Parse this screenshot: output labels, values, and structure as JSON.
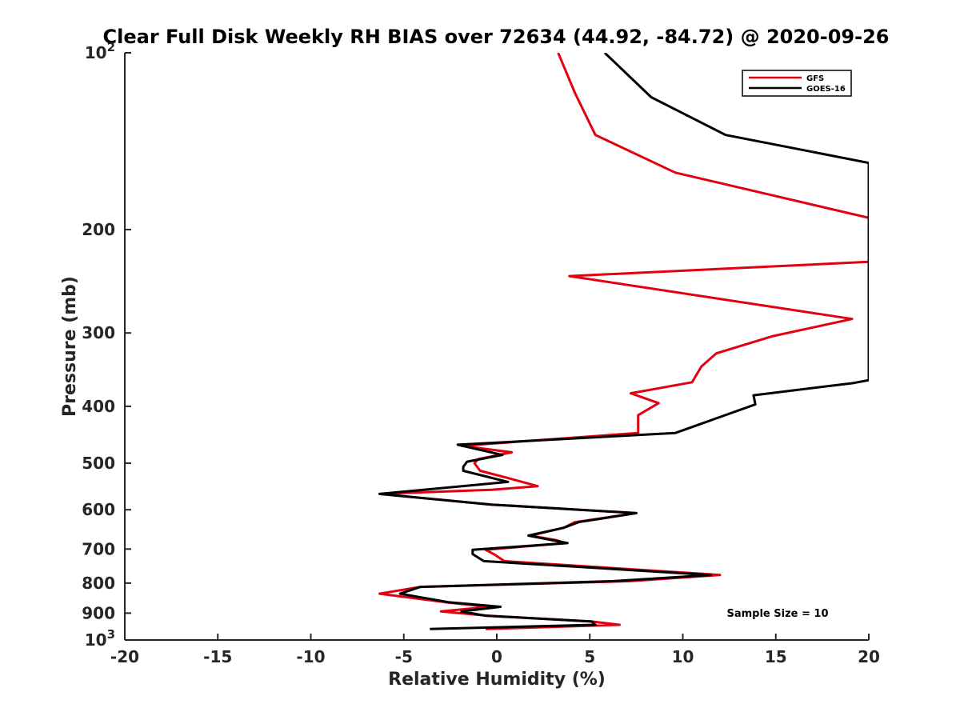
{
  "chart_data": {
    "type": "line",
    "title": "Clear Full Disk Weekly RH BIAS over 72634 (44.92, -84.72) @ 2020-09-26",
    "xlabel": "Relative Humidity (%)",
    "ylabel": "Pressure (mb)",
    "xlim": [
      -20,
      20
    ],
    "ylim": [
      100,
      1000
    ],
    "yscale": "log",
    "yreversed": true,
    "xticks": [
      "-20",
      "-15",
      "-10",
      "-5",
      "0",
      "5",
      "10",
      "15",
      "20"
    ],
    "yticks": [
      {
        "value": 100,
        "base": "10",
        "exp": "2"
      },
      {
        "value": 200,
        "label": "200"
      },
      {
        "value": 300,
        "label": "300"
      },
      {
        "value": 400,
        "label": "400"
      },
      {
        "value": 500,
        "label": "500"
      },
      {
        "value": 600,
        "label": "600"
      },
      {
        "value": 700,
        "label": "700"
      },
      {
        "value": 800,
        "label": "800"
      },
      {
        "value": 900,
        "label": "900"
      },
      {
        "value": 1000,
        "base": "10",
        "exp": "3"
      }
    ],
    "legend": "top-right",
    "annotation": "Sample Size = 10",
    "series": [
      {
        "name": "GFS",
        "color": "#e3000f",
        "points": [
          [
            3.3,
            100
          ],
          [
            4.2,
            117
          ],
          [
            5.3,
            138
          ],
          [
            9.6,
            160
          ],
          [
            20,
            191
          ],
          [
            20,
            227
          ],
          [
            3.9,
            240
          ],
          [
            19.1,
            284
          ],
          [
            14.8,
            304
          ],
          [
            11.8,
            325
          ],
          [
            11.0,
            342
          ],
          [
            10.5,
            364
          ],
          [
            7.2,
            380
          ],
          [
            8.7,
            395
          ],
          [
            7.6,
            414
          ],
          [
            7.6,
            444
          ],
          [
            -1.9,
            467
          ],
          [
            0.8,
            479
          ],
          [
            -1.0,
            492
          ],
          [
            -1.2,
            500
          ],
          [
            -0.9,
            515
          ],
          [
            0.7,
            531
          ],
          [
            2.2,
            547
          ],
          [
            -0.3,
            555
          ],
          [
            -6.3,
            564
          ],
          [
            -0.3,
            588
          ],
          [
            7.5,
            608
          ],
          [
            4.2,
            630
          ],
          [
            3.6,
            644
          ],
          [
            1.8,
            664
          ],
          [
            3.2,
            676
          ],
          [
            3.7,
            684
          ],
          [
            -0.6,
            702
          ],
          [
            -0.1,
            716
          ],
          [
            0.4,
            734
          ],
          [
            12.0,
            775
          ],
          [
            7.1,
            794
          ],
          [
            -4.1,
            812
          ],
          [
            -6.3,
            834
          ],
          [
            -2.8,
            862
          ],
          [
            -0.4,
            878
          ],
          [
            -3.0,
            894
          ],
          [
            -0.5,
            909
          ],
          [
            5.1,
            930
          ],
          [
            6.6,
            942
          ],
          [
            -0.6,
            958
          ]
        ]
      },
      {
        "name": "GOES-16",
        "color": "#000000",
        "points": [
          [
            5.8,
            100
          ],
          [
            8.3,
            119
          ],
          [
            12.3,
            138
          ],
          [
            20,
            154
          ],
          [
            20,
            361
          ],
          [
            19.2,
            365
          ],
          [
            13.8,
            383
          ],
          [
            13.9,
            397
          ],
          [
            9.6,
            444
          ],
          [
            -2.1,
            465
          ],
          [
            0.3,
            484
          ],
          [
            -1.6,
            497
          ],
          [
            -1.8,
            507
          ],
          [
            -1.8,
            515
          ],
          [
            0.6,
            538
          ],
          [
            -6.3,
            564
          ],
          [
            -0.3,
            588
          ],
          [
            7.5,
            608
          ],
          [
            4.4,
            630
          ],
          [
            3.6,
            644
          ],
          [
            1.7,
            664
          ],
          [
            3.8,
            684
          ],
          [
            -1.3,
            702
          ],
          [
            -1.3,
            714
          ],
          [
            -0.7,
            734
          ],
          [
            11.5,
            775
          ],
          [
            6.2,
            794
          ],
          [
            -4.1,
            812
          ],
          [
            -5.2,
            834
          ],
          [
            -2.6,
            862
          ],
          [
            0.2,
            878
          ],
          [
            -1.9,
            894
          ],
          [
            -0.6,
            909
          ],
          [
            5.1,
            930
          ],
          [
            5.3,
            942
          ],
          [
            -3.6,
            958
          ]
        ]
      }
    ]
  }
}
